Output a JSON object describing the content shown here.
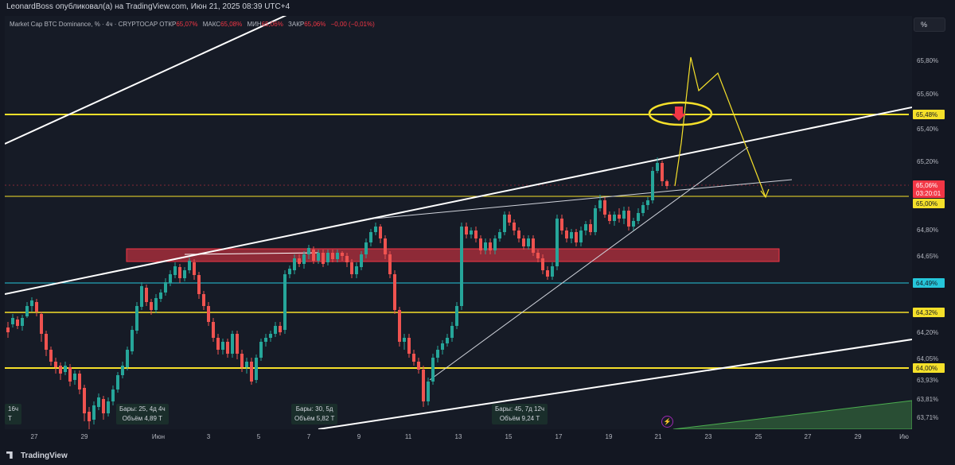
{
  "header": {
    "publisher": "LeonardBoss опубликовал(а) на TradingView.com, Июн 21, 2025 08:39 UTC+4"
  },
  "legend": {
    "symbol": "Market Cap BTC Dominance, % · 4ч · CRYPTOCAP",
    "open_label": "ОТКР",
    "open_value": "65,07%",
    "high_label": "МАКС",
    "high_value": "65,08%",
    "low_label": "МИН",
    "low_value": "65,06%",
    "close_label": "ЗАКР",
    "close_value": "65,06%",
    "change": "−0,00 (−0,01%)"
  },
  "scale_button": "%",
  "price_axis": {
    "ticks": [
      "65,80%",
      "65,60%",
      "65,40%",
      "65,20%",
      "64,80%",
      "64,65%",
      "64,20%",
      "64,05%",
      "63,93%",
      "63,81%",
      "63,71%"
    ],
    "labels": {
      "l6548": "65,48%",
      "last_price": "65,06%",
      "countdown": "03:20:01",
      "l6500": "65,00%",
      "l6449": "64,49%",
      "l6432": "64,32%",
      "l6400": "64,00%"
    },
    "colors": {
      "yellow": "#f5e02a",
      "cyan": "#26c6da",
      "red": "#f23645",
      "last_bg": "#f23645"
    }
  },
  "time_axis": {
    "ticks": [
      "27",
      "29",
      "Июн",
      "3",
      "5",
      "7",
      "9",
      "11",
      "13",
      "15",
      "17",
      "19",
      "21",
      "23",
      "25",
      "27",
      "29",
      "Ию"
    ]
  },
  "data_boxes": [
    {
      "line1": "16ч",
      "line2": "T"
    },
    {
      "line1": "Бары: 25, 4д 4ч",
      "line2": "Объём 4,89 T"
    },
    {
      "line1": "Бары: 30, 5д",
      "line2": "Объём 5,82 T"
    },
    {
      "line1": "Бары: 45, 7д 12ч",
      "line2": "Объём 9,24 T"
    }
  ],
  "branding": "TradingView",
  "icons": {
    "tv_logo": "tradingview-logo-icon",
    "bolt": "lightning-icon",
    "arrow": "down-arrow-icon"
  },
  "colors": {
    "up": "#26a69a",
    "down": "#ef5350",
    "channel": "#ffffff",
    "zone": "#f23645",
    "bg": "#131722"
  }
}
